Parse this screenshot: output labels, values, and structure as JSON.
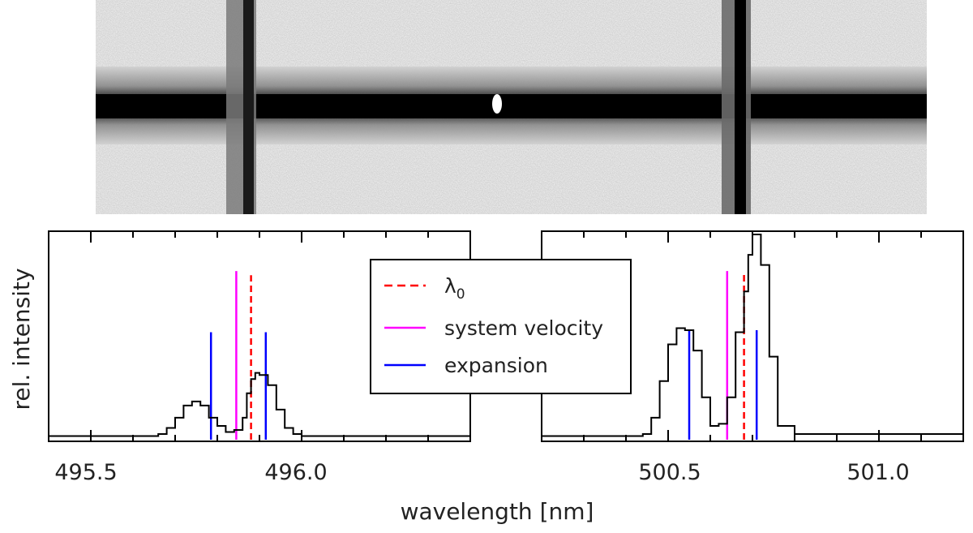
{
  "chart_data": [
    {
      "type": "heatmap",
      "description_name": "spectrum-image",
      "band_color": "#000000",
      "background_color": "#d8d8d8",
      "emission_lines_nm": [
        495.9,
        500.7
      ]
    },
    {
      "type": "line",
      "panel": "left",
      "xlim": [
        495.4,
        496.4
      ],
      "ylim": [
        0,
        1
      ],
      "xticks": [
        495.5,
        496.0
      ],
      "xtick_labels": [
        "495.5",
        "496.0"
      ],
      "x": [
        495.4,
        495.6,
        495.66,
        495.68,
        495.7,
        495.72,
        495.74,
        495.76,
        495.78,
        495.8,
        495.82,
        495.84,
        495.86,
        495.87,
        495.88,
        495.89,
        495.9,
        495.92,
        495.94,
        495.96,
        495.98,
        496.0,
        496.2,
        496.4
      ],
      "values": [
        0.01,
        0.01,
        0.02,
        0.05,
        0.1,
        0.16,
        0.18,
        0.16,
        0.1,
        0.06,
        0.03,
        0.04,
        0.1,
        0.22,
        0.29,
        0.32,
        0.31,
        0.26,
        0.14,
        0.05,
        0.02,
        0.01,
        0.01,
        0.01
      ],
      "lambda0": 495.88,
      "system_velocity": 495.845,
      "expansion": [
        495.785,
        495.915
      ],
      "marker_heights": {
        "lambda0": 0.8,
        "system_velocity": 0.82,
        "expansion": 0.52
      }
    },
    {
      "type": "line",
      "panel": "right",
      "xlim": [
        500.2,
        501.2
      ],
      "ylim": [
        0,
        1
      ],
      "xticks": [
        500.5,
        501.0
      ],
      "xtick_labels": [
        "500.5",
        "501.0"
      ],
      "x": [
        500.2,
        500.4,
        500.44,
        500.46,
        500.48,
        500.5,
        500.52,
        500.54,
        500.56,
        500.58,
        500.6,
        500.62,
        500.64,
        500.66,
        500.68,
        500.69,
        500.7,
        500.72,
        500.74,
        500.76,
        500.8,
        501.2
      ],
      "values": [
        0.01,
        0.01,
        0.02,
        0.1,
        0.28,
        0.46,
        0.54,
        0.53,
        0.43,
        0.2,
        0.06,
        0.07,
        0.2,
        0.52,
        0.72,
        0.9,
        1.0,
        0.85,
        0.4,
        0.06,
        0.02,
        0.01
      ],
      "lambda0": 500.68,
      "system_velocity": 500.64,
      "expansion": [
        500.55,
        500.71
      ],
      "marker_heights": {
        "lambda0": 0.82,
        "system_velocity": 0.82,
        "expansion": 0.53
      }
    }
  ],
  "axes": {
    "xlabel": "wavelength [nm]",
    "ylabel": "rel. intensity"
  },
  "legend": {
    "entries": [
      {
        "label": "λ",
        "subscript": "0",
        "color": "#ff0000",
        "style": "dashed"
      },
      {
        "label": "system velocity",
        "color": "#ff00ff",
        "style": "solid"
      },
      {
        "label": "expansion",
        "color": "#0000ff",
        "style": "solid"
      }
    ]
  },
  "colors": {
    "profile": "#000000",
    "lambda0": "#ff0000",
    "system_velocity": "#ff00ff",
    "expansion": "#0000ff"
  }
}
